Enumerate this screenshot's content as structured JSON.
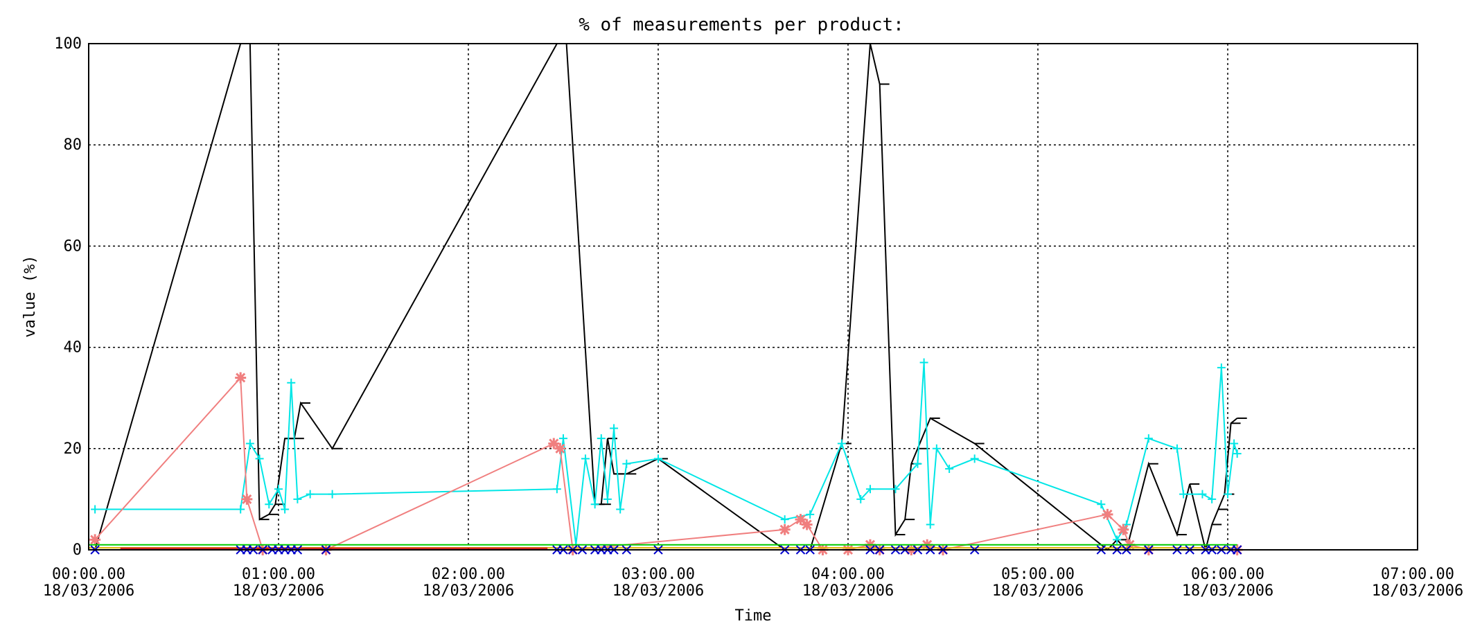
{
  "chart_data": {
    "type": "line",
    "title": "% of measurements per product:",
    "xlabel": "Time",
    "ylabel": "value (%)",
    "ylim": [
      0,
      100
    ],
    "xlim": [
      "2006-03-18 00:00:00",
      "2006-03-18 07:00:00"
    ],
    "y_ticks": [
      "0",
      "20",
      "40",
      "60",
      "80",
      "100"
    ],
    "x_ticks": [
      {
        "time": "00:00.00",
        "date": "18/03/2006"
      },
      {
        "time": "01:00.00",
        "date": "18/03/2006"
      },
      {
        "time": "02:00.00",
        "date": "18/03/2006"
      },
      {
        "time": "03:00.00",
        "date": "18/03/2006"
      },
      {
        "time": "04:00.00",
        "date": "18/03/2006"
      },
      {
        "time": "05:00.00",
        "date": "18/03/2006"
      },
      {
        "time": "06:00.00",
        "date": "18/03/2006"
      },
      {
        "time": "07:00.00",
        "date": "18/03/2006"
      }
    ],
    "grid": "dotted",
    "legend": "none",
    "series": [
      {
        "color": "#000000",
        "marker": "bar",
        "points": [
          [
            "00:02",
            0
          ],
          [
            "00:48",
            100
          ],
          [
            "00:51",
            100
          ],
          [
            "00:54",
            6
          ],
          [
            "00:57",
            7
          ],
          [
            "00:59",
            9
          ],
          [
            "01:02",
            22
          ],
          [
            "01:05",
            22
          ],
          [
            "01:07",
            29
          ],
          [
            "01:17",
            20
          ],
          [
            "02:28",
            100
          ],
          [
            "02:31",
            100
          ],
          [
            "02:40",
            9
          ],
          [
            "02:42",
            9
          ],
          [
            "02:44",
            22
          ],
          [
            "02:46",
            15
          ],
          [
            "02:50",
            15
          ],
          [
            "03:00",
            18
          ],
          [
            "03:40",
            0
          ],
          [
            "03:48",
            0
          ],
          [
            "03:58",
            21
          ],
          [
            "04:07",
            100
          ],
          [
            "04:10",
            92
          ],
          [
            "04:15",
            3
          ],
          [
            "04:18",
            6
          ],
          [
            "04:20",
            17
          ],
          [
            "04:22",
            20
          ],
          [
            "04:26",
            26
          ],
          [
            "04:40",
            21
          ],
          [
            "05:22",
            0
          ],
          [
            "05:25",
            2
          ],
          [
            "05:28",
            0
          ],
          [
            "05:35",
            17
          ],
          [
            "05:44",
            3
          ],
          [
            "05:48",
            13
          ],
          [
            "05:53",
            0
          ],
          [
            "05:55",
            5
          ],
          [
            "05:57",
            8
          ],
          [
            "05:59",
            11
          ],
          [
            "06:01",
            25
          ],
          [
            "06:03",
            26
          ]
        ]
      },
      {
        "color": "#00e6e6",
        "marker": "plus",
        "points": [
          [
            "00:02",
            8
          ],
          [
            "00:48",
            8
          ],
          [
            "00:51",
            21
          ],
          [
            "00:54",
            18
          ],
          [
            "00:57",
            9
          ],
          [
            "01:00",
            12
          ],
          [
            "01:02",
            8
          ],
          [
            "01:04",
            33
          ],
          [
            "01:06",
            10
          ],
          [
            "01:10",
            11
          ],
          [
            "01:17",
            11
          ],
          [
            "02:28",
            12
          ],
          [
            "02:30",
            22
          ],
          [
            "02:34",
            1
          ],
          [
            "02:37",
            18
          ],
          [
            "02:40",
            9
          ],
          [
            "02:42",
            22
          ],
          [
            "02:44",
            10
          ],
          [
            "02:46",
            24
          ],
          [
            "02:48",
            8
          ],
          [
            "02:50",
            17
          ],
          [
            "03:00",
            18
          ],
          [
            "03:40",
            6
          ],
          [
            "03:48",
            7
          ],
          [
            "03:58",
            21
          ],
          [
            "04:04",
            10
          ],
          [
            "04:07",
            12
          ],
          [
            "04:15",
            12
          ],
          [
            "04:22",
            17
          ],
          [
            "04:24",
            37
          ],
          [
            "04:26",
            5
          ],
          [
            "04:28",
            20
          ],
          [
            "04:32",
            16
          ],
          [
            "04:40",
            18
          ],
          [
            "05:20",
            9
          ],
          [
            "05:25",
            2
          ],
          [
            "05:28",
            5
          ],
          [
            "05:35",
            22
          ],
          [
            "05:44",
            20
          ],
          [
            "05:46",
            11
          ],
          [
            "05:52",
            11
          ],
          [
            "05:55",
            10
          ],
          [
            "05:58",
            36
          ],
          [
            "06:00",
            11
          ],
          [
            "06:02",
            21
          ],
          [
            "06:03",
            19
          ]
        ]
      },
      {
        "color": "#f07f7f",
        "marker": "asterisk",
        "points": [
          [
            "00:02",
            2
          ],
          [
            "00:48",
            34
          ],
          [
            "00:50",
            10
          ],
          [
            "00:55",
            0
          ],
          [
            "01:15",
            0
          ],
          [
            "02:27",
            21
          ],
          [
            "02:29",
            20
          ],
          [
            "02:33",
            0
          ],
          [
            "03:40",
            4
          ],
          [
            "03:45",
            6
          ],
          [
            "03:47",
            5
          ],
          [
            "03:52",
            0
          ],
          [
            "04:00",
            0
          ],
          [
            "04:07",
            1
          ],
          [
            "04:10",
            0
          ],
          [
            "04:20",
            0
          ],
          [
            "04:25",
            1
          ],
          [
            "04:30",
            0
          ],
          [
            "05:22",
            7
          ],
          [
            "05:27",
            4
          ],
          [
            "05:29",
            1
          ],
          [
            "05:35",
            0
          ],
          [
            "06:03",
            0
          ]
        ]
      },
      {
        "color": "#00cc00",
        "marker": "none",
        "points": [
          [
            "00:00",
            1
          ],
          [
            "03:40",
            1
          ],
          [
            "04:00",
            1
          ],
          [
            "05:20",
            1
          ],
          [
            "06:03",
            1
          ]
        ]
      },
      {
        "color": "#e0b000",
        "marker": "none",
        "points": [
          [
            "00:00",
            0.4
          ],
          [
            "06:03",
            0.4
          ]
        ]
      },
      {
        "color": "#cc0000",
        "marker": "none",
        "points": [
          [
            "00:10",
            0.3
          ],
          [
            "00:55",
            0.3
          ],
          [
            "01:55",
            0.3
          ],
          [
            "02:25",
            0.3
          ]
        ]
      },
      {
        "color": "#cc00cc",
        "marker": "none",
        "points": [
          [
            "00:00",
            0
          ],
          [
            "06:03",
            0
          ]
        ]
      },
      {
        "color": "#0000cc",
        "marker": "x",
        "points": [
          [
            "00:02",
            0
          ],
          [
            "00:48",
            0
          ],
          [
            "00:50",
            0
          ],
          [
            "00:52",
            0
          ],
          [
            "00:55",
            0
          ],
          [
            "00:58",
            0
          ],
          [
            "01:00",
            0
          ],
          [
            "01:02",
            0
          ],
          [
            "01:04",
            0
          ],
          [
            "01:06",
            0
          ],
          [
            "01:15",
            0
          ],
          [
            "02:28",
            0
          ],
          [
            "02:30",
            0
          ],
          [
            "02:33",
            0
          ],
          [
            "02:36",
            0
          ],
          [
            "02:40",
            0
          ],
          [
            "02:42",
            0
          ],
          [
            "02:44",
            0
          ],
          [
            "02:46",
            0
          ],
          [
            "02:50",
            0
          ],
          [
            "03:00",
            0
          ],
          [
            "03:40",
            0
          ],
          [
            "03:45",
            0
          ],
          [
            "03:48",
            0
          ],
          [
            "04:07",
            0
          ],
          [
            "04:10",
            0
          ],
          [
            "04:15",
            0
          ],
          [
            "04:18",
            0
          ],
          [
            "04:22",
            0
          ],
          [
            "04:26",
            0
          ],
          [
            "04:30",
            0
          ],
          [
            "04:40",
            0
          ],
          [
            "05:20",
            0
          ],
          [
            "05:25",
            0
          ],
          [
            "05:28",
            0
          ],
          [
            "05:35",
            0
          ],
          [
            "05:44",
            0
          ],
          [
            "05:48",
            0
          ],
          [
            "05:53",
            0
          ],
          [
            "05:55",
            0
          ],
          [
            "05:58",
            0
          ],
          [
            "06:01",
            0
          ],
          [
            "06:03",
            0
          ]
        ]
      }
    ]
  }
}
